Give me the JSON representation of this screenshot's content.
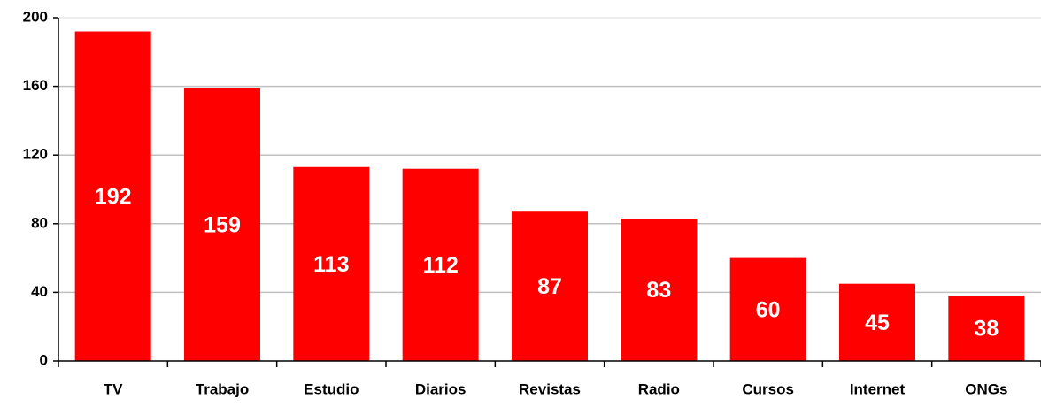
{
  "chart_data": {
    "type": "bar",
    "categories": [
      "TV",
      "Trabajo",
      "Estudio",
      "Diarios",
      "Revistas",
      "Radio",
      "Cursos",
      "Internet",
      "ONGs"
    ],
    "values": [
      192,
      159,
      113,
      112,
      87,
      83,
      60,
      45,
      38
    ],
    "color": "#ff0000",
    "ylim": [
      0,
      200
    ],
    "yticks": [
      0,
      40,
      80,
      120,
      160,
      200
    ],
    "grid": true
  }
}
